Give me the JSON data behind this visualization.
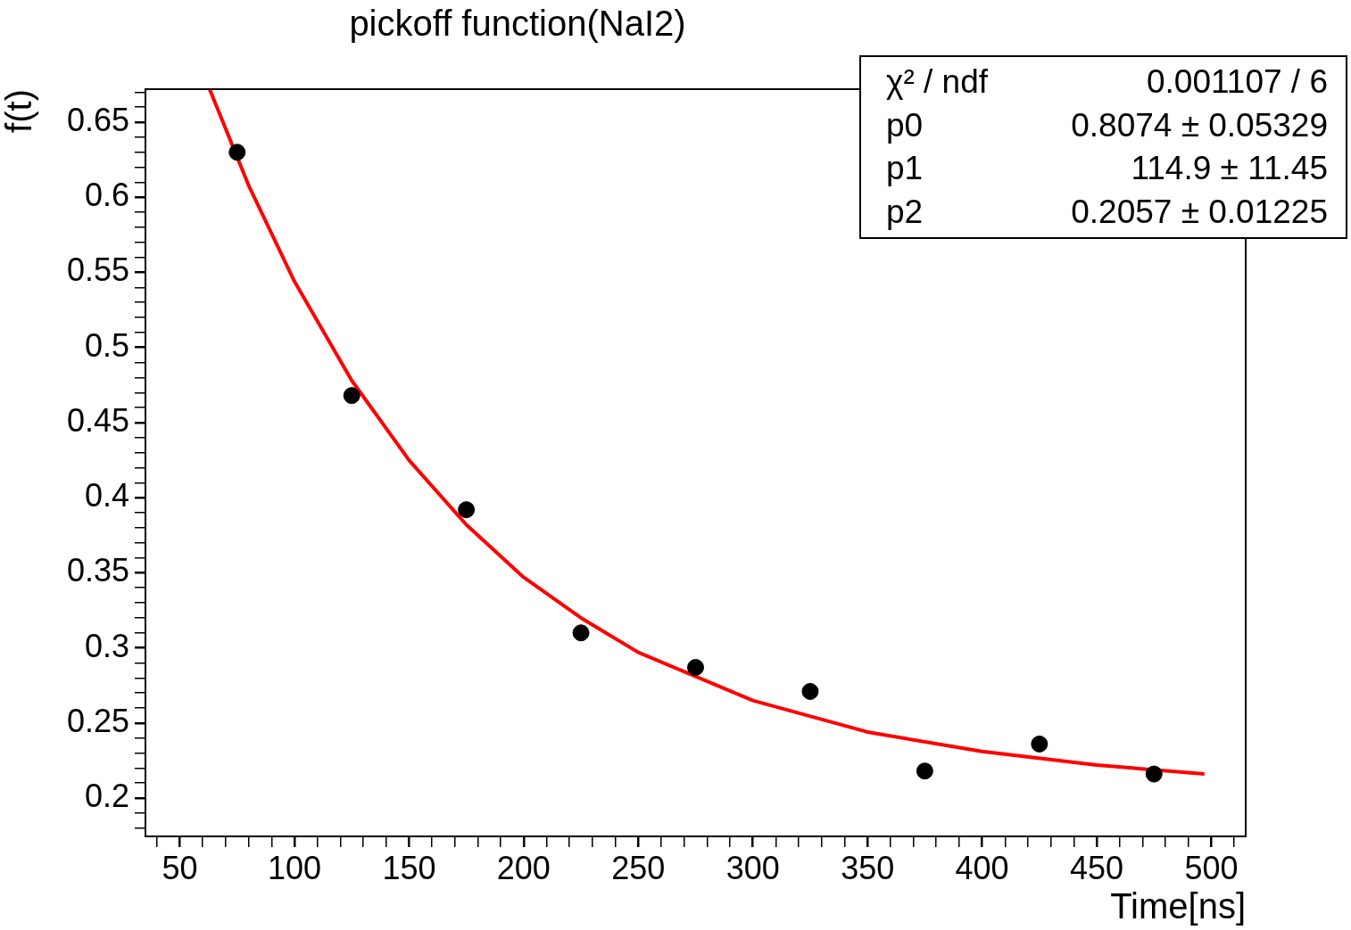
{
  "chart_data": {
    "type": "scatter",
    "title": "pickoff function(NaI2)",
    "xlabel": "Time[ns]",
    "ylabel": "f(t)",
    "annotations": [
      "χ² / ndf",
      "0.001107 / 6",
      "p0",
      "0.8074 ± 0.05329",
      "p1",
      "114.9 ± 11.45",
      "p2",
      "0.2057 ± 0.01225"
    ],
    "xlim": [
      35,
      515
    ],
    "ylim": [
      0.1745,
      0.672
    ],
    "xticks": [
      {
        "value": 40,
        "label": null
      },
      50,
      {
        "value": 60,
        "label": null
      },
      {
        "value": 70,
        "label": null
      },
      {
        "value": 80,
        "label": null
      },
      {
        "value": 90,
        "label": null
      },
      100,
      {
        "value": 110,
        "label": null
      },
      {
        "value": 120,
        "label": null
      },
      {
        "value": 130,
        "label": null
      },
      {
        "value": 140,
        "label": null
      },
      150,
      {
        "value": 160,
        "label": null
      },
      {
        "value": 170,
        "label": null
      },
      {
        "value": 180,
        "label": null
      },
      {
        "value": 190,
        "label": null
      },
      200,
      {
        "value": 210,
        "label": null
      },
      {
        "value": 220,
        "label": null
      },
      {
        "value": 230,
        "label": null
      },
      {
        "value": 240,
        "label": null
      },
      250,
      {
        "value": 260,
        "label": null
      },
      {
        "value": 270,
        "label": null
      },
      {
        "value": 280,
        "label": null
      },
      {
        "value": 290,
        "label": null
      },
      300,
      {
        "value": 310,
        "label": null
      },
      {
        "value": 320,
        "label": null
      },
      {
        "value": 330,
        "label": null
      },
      {
        "value": 340,
        "label": null
      },
      350,
      {
        "value": 360,
        "label": null
      },
      {
        "value": 370,
        "label": null
      },
      {
        "value": 380,
        "label": null
      },
      {
        "value": 390,
        "label": null
      },
      400,
      {
        "value": 410,
        "label": null
      },
      {
        "value": 420,
        "label": null
      },
      {
        "value": 430,
        "label": null
      },
      {
        "value": 440,
        "label": null
      },
      450,
      {
        "value": 460,
        "label": null
      },
      {
        "value": 470,
        "label": null
      },
      {
        "value": 480,
        "label": null
      },
      {
        "value": 490,
        "label": null
      },
      500,
      {
        "value": 510,
        "label": null
      }
    ],
    "yticks": [
      {
        "value": 0.18,
        "label": null
      },
      {
        "value": 0.19,
        "label": null
      },
      0.2,
      {
        "value": 0.21,
        "label": null
      },
      {
        "value": 0.22,
        "label": null
      },
      {
        "value": 0.23,
        "label": null
      },
      {
        "value": 0.24,
        "label": null
      },
      0.25,
      {
        "value": 0.26,
        "label": null
      },
      {
        "value": 0.27,
        "label": null
      },
      {
        "value": 0.28,
        "label": null
      },
      {
        "value": 0.29,
        "label": null
      },
      0.3,
      {
        "value": 0.31,
        "label": null
      },
      {
        "value": 0.32,
        "label": null
      },
      {
        "value": 0.33,
        "label": null
      },
      {
        "value": 0.34,
        "label": null
      },
      0.35,
      {
        "value": 0.36,
        "label": null
      },
      {
        "value": 0.37,
        "label": null
      },
      {
        "value": 0.38,
        "label": null
      },
      {
        "value": 0.39,
        "label": null
      },
      0.4,
      {
        "value": 0.41,
        "label": null
      },
      {
        "value": 0.42,
        "label": null
      },
      {
        "value": 0.43,
        "label": null
      },
      {
        "value": 0.44,
        "label": null
      },
      0.45,
      {
        "value": 0.46,
        "label": null
      },
      {
        "value": 0.47,
        "label": null
      },
      {
        "value": 0.48,
        "label": null
      },
      {
        "value": 0.49,
        "label": null
      },
      0.5,
      {
        "value": 0.51,
        "label": null
      },
      {
        "value": 0.52,
        "label": null
      },
      {
        "value": 0.53,
        "label": null
      },
      {
        "value": 0.54,
        "label": null
      },
      0.55,
      {
        "value": 0.56,
        "label": null
      },
      {
        "value": 0.57,
        "label": null
      },
      {
        "value": 0.58,
        "label": null
      },
      {
        "value": 0.59,
        "label": null
      },
      0.6,
      {
        "value": 0.61,
        "label": null
      },
      {
        "value": 0.62,
        "label": null
      },
      {
        "value": 0.63,
        "label": null
      },
      {
        "value": 0.64,
        "label": null
      },
      0.65,
      {
        "value": 0.66,
        "label": null
      },
      {
        "value": 0.67,
        "label": null
      }
    ],
    "grid": false,
    "legend": false,
    "marker": "circle",
    "series": [
      {
        "color": "#000000",
        "x": [
          75,
          125,
          175,
          225,
          275,
          325,
          375,
          425,
          475
        ],
        "values": [
          0.63,
          0.468,
          0.392,
          0.31,
          0.287,
          0.271,
          0.218,
          0.236,
          0.216
        ]
      },
      {
        "type": "line",
        "color": "#ff0000",
        "marker": "none",
        "line_style": "solid",
        "x": [
          63,
          80,
          100,
          125,
          150,
          175,
          200,
          225,
          250,
          300,
          350,
          400,
          450,
          497
        ],
        "values": [
          0.672,
          0.608,
          0.544,
          0.478,
          0.425,
          0.382,
          0.347,
          0.32,
          0.297,
          0.265,
          0.244,
          0.231,
          0.222,
          0.216
        ]
      }
    ]
  }
}
